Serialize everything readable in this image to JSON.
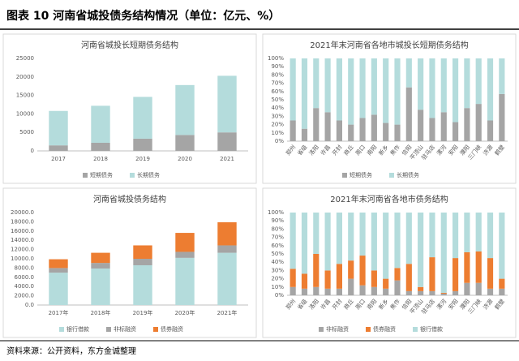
{
  "header": {
    "title": "图表 10   河南省城投债务结构情况（单位：亿元、%）"
  },
  "footer": {
    "source": "资料来源：公开资料，东方金诚整理"
  },
  "chart_data": [
    {
      "type": "bar",
      "stacked": true,
      "title": "河南省城投长短期债务结构",
      "categories": [
        "2017",
        "2018",
        "2019",
        "2020",
        "2021"
      ],
      "series": [
        {
          "name": "短期债务",
          "color": "#a5a5a5",
          "values": [
            1500,
            2200,
            3300,
            4300,
            5000
          ]
        },
        {
          "name": "长期债务",
          "color": "#b4dcdc",
          "values": [
            9300,
            10000,
            11300,
            13500,
            15300
          ]
        }
      ],
      "ylim": [
        0,
        25000
      ],
      "yticks": [
        0,
        5000,
        10000,
        15000,
        20000,
        25000
      ],
      "grid": false,
      "legend": "bottom"
    },
    {
      "type": "bar",
      "stacked": true,
      "title": "2021年末河南省各地市城投长短期债务结构",
      "categories": [
        "郑州",
        "省级",
        "洛阳",
        "许昌",
        "开封",
        "商丘",
        "周口",
        "南阳",
        "新乡",
        "焦作",
        "信阳",
        "平顶山",
        "驻马店",
        "漯河",
        "安阳",
        "濮阳",
        "三门峡",
        "济源",
        "鹤壁"
      ],
      "series": [
        {
          "name": "短期债务",
          "color": "#a5a5a5",
          "values": [
            25,
            15,
            40,
            35,
            25,
            20,
            28,
            32,
            22,
            20,
            65,
            38,
            28,
            35,
            23,
            40,
            45,
            25,
            57
          ]
        },
        {
          "name": "长期债务",
          "color": "#b4dcdc",
          "values": [
            75,
            85,
            60,
            65,
            75,
            80,
            72,
            68,
            78,
            80,
            35,
            62,
            72,
            65,
            77,
            60,
            55,
            75,
            43
          ]
        }
      ],
      "ylim": [
        0,
        100
      ],
      "yticks": [
        {
          "value": 0,
          "label": "0%"
        },
        {
          "value": 10,
          "label": "10%"
        },
        {
          "value": 20,
          "label": "20%"
        },
        {
          "value": 30,
          "label": "30%"
        },
        {
          "value": 40,
          "label": "40%"
        },
        {
          "value": 50,
          "label": "50%"
        },
        {
          "value": 60,
          "label": "60%"
        },
        {
          "value": 70,
          "label": "70%"
        },
        {
          "value": 80,
          "label": "80%"
        },
        {
          "value": 90,
          "label": "90%"
        },
        {
          "value": 100,
          "label": "100%"
        }
      ],
      "grid": false,
      "legend": "bottom"
    },
    {
      "type": "bar",
      "stacked": true,
      "title": "河南省城投债务结构",
      "categories": [
        "2017年",
        "2018年",
        "2019年",
        "2020年",
        "2021年"
      ],
      "series": [
        {
          "name": "银行借款",
          "color": "#b4dcdc",
          "values": [
            7000,
            7900,
            8600,
            10200,
            11300
          ]
        },
        {
          "name": "非标融资",
          "color": "#a5a5a5",
          "values": [
            1000,
            1200,
            1400,
            1300,
            1600
          ]
        },
        {
          "name": "债券融资",
          "color": "#ed7d31",
          "values": [
            1900,
            2200,
            2900,
            4100,
            5000
          ]
        }
      ],
      "ylim": [
        0,
        20000
      ],
      "yticks": [
        {
          "value": 0,
          "label": "0.0"
        },
        {
          "value": 2000,
          "label": "2000.0"
        },
        {
          "value": 4000,
          "label": "4000.0"
        },
        {
          "value": 6000,
          "label": "6000.0"
        },
        {
          "value": 8000,
          "label": "8000.0"
        },
        {
          "value": 10000,
          "label": "10000.0"
        },
        {
          "value": 12000,
          "label": "12000.0"
        },
        {
          "value": 14000,
          "label": "14000.0"
        },
        {
          "value": 16000,
          "label": "16000.0"
        },
        {
          "value": 18000,
          "label": "18000.0"
        },
        {
          "value": 20000,
          "label": "20000.0"
        }
      ],
      "grid": false,
      "legend": "bottom"
    },
    {
      "type": "bar",
      "stacked": true,
      "title": "2021年末河南省各地市债务结构",
      "categories": [
        "郑州",
        "省级",
        "洛阳",
        "许昌",
        "开封",
        "商丘",
        "周口",
        "南阳",
        "新乡",
        "焦作",
        "信阳",
        "平顶山",
        "驻马店",
        "漯河",
        "安阳",
        "濮阳",
        "三门峡",
        "济源",
        "鹤壁"
      ],
      "series": [
        {
          "name": "非标融资",
          "color": "#a5a5a5",
          "values": [
            10,
            8,
            10,
            8,
            8,
            20,
            12,
            10,
            8,
            18,
            5,
            5,
            5,
            2,
            5,
            15,
            15,
            8,
            8
          ]
        },
        {
          "name": "债券融资",
          "color": "#ed7d31",
          "values": [
            22,
            18,
            40,
            22,
            30,
            22,
            36,
            20,
            12,
            15,
            33,
            5,
            41,
            1,
            40,
            37,
            38,
            37,
            12
          ]
        },
        {
          "name": "银行借款",
          "color": "#b4dcdc",
          "values": [
            68,
            74,
            50,
            70,
            62,
            58,
            52,
            70,
            80,
            67,
            62,
            90,
            54,
            97,
            55,
            48,
            47,
            55,
            80
          ]
        }
      ],
      "ylim": [
        0,
        100
      ],
      "yticks": [
        {
          "value": 0,
          "label": "0%"
        },
        {
          "value": 10,
          "label": "10%"
        },
        {
          "value": 20,
          "label": "20%"
        },
        {
          "value": 30,
          "label": "30%"
        },
        {
          "value": 40,
          "label": "40%"
        },
        {
          "value": 50,
          "label": "50%"
        },
        {
          "value": 60,
          "label": "60%"
        },
        {
          "value": 70,
          "label": "70%"
        },
        {
          "value": 80,
          "label": "80%"
        },
        {
          "value": 90,
          "label": "90%"
        },
        {
          "value": 100,
          "label": "100%"
        }
      ],
      "grid": false,
      "legend": "bottom"
    }
  ]
}
